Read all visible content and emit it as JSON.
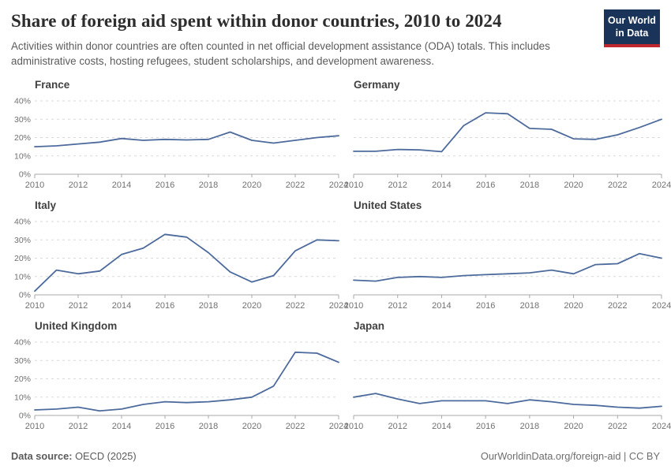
{
  "header": {
    "title": "Share of foreign aid spent within donor countries, 2010 to 2024",
    "subtitle": "Activities within donor countries are often counted in net official development assistance (ODA) totals. This includes administrative costs, hosting refugees, student scholarships, and development awareness.",
    "logo": {
      "line1": "Our World",
      "line2": "in Data"
    }
  },
  "colors": {
    "line": "#4c6a9c",
    "gridline": "#d9d9d9",
    "axis": "#a8a8a8",
    "tick_text": "#717171",
    "logo_bg": "#1a3459",
    "logo_underline": "#c0262d"
  },
  "axis": {
    "x_range": [
      2010,
      2024
    ],
    "x_ticks": [
      2010,
      2012,
      2014,
      2016,
      2018,
      2020,
      2022,
      2024
    ],
    "ylim": [
      0,
      40
    ],
    "y_ticks": [
      0,
      10,
      20,
      30,
      40
    ],
    "y_tick_labels": [
      "0%",
      "10%",
      "20%",
      "30%",
      "40%"
    ],
    "grid": "dashed-horizontal",
    "legend": "none"
  },
  "chart_data": [
    {
      "type": "line",
      "title": "France",
      "y_axis_labels": true,
      "x": [
        2010,
        2011,
        2012,
        2013,
        2014,
        2015,
        2016,
        2017,
        2018,
        2019,
        2020,
        2021,
        2022,
        2023,
        2024
      ],
      "values": [
        15,
        15.5,
        16.5,
        17.5,
        19.5,
        18.5,
        19,
        18.7,
        19,
        23,
        18.5,
        17,
        18.5,
        20,
        21
      ]
    },
    {
      "type": "line",
      "title": "Germany",
      "y_axis_labels": false,
      "x": [
        2010,
        2011,
        2012,
        2013,
        2014,
        2015,
        2016,
        2017,
        2018,
        2019,
        2020,
        2021,
        2022,
        2023,
        2024
      ],
      "values": [
        12.5,
        12.5,
        13.5,
        13.3,
        12.3,
        26.5,
        33.5,
        33,
        25,
        24.5,
        19.3,
        19,
        21.5,
        25.5,
        30
      ]
    },
    {
      "type": "line",
      "title": "Italy",
      "y_axis_labels": true,
      "x": [
        2010,
        2011,
        2012,
        2013,
        2014,
        2015,
        2016,
        2017,
        2018,
        2019,
        2020,
        2021,
        2022,
        2023,
        2024
      ],
      "values": [
        2,
        13.5,
        11.5,
        13,
        22,
        25.5,
        33,
        31.5,
        23,
        12.5,
        7,
        10.5,
        24,
        30,
        29.5
      ]
    },
    {
      "type": "line",
      "title": "United States",
      "y_axis_labels": false,
      "x": [
        2010,
        2011,
        2012,
        2013,
        2014,
        2015,
        2016,
        2017,
        2018,
        2019,
        2020,
        2021,
        2022,
        2023,
        2024
      ],
      "values": [
        8,
        7.5,
        9.5,
        10,
        9.5,
        10.5,
        11,
        11.5,
        12,
        13.5,
        11.5,
        16.5,
        17,
        22.5,
        20
      ]
    },
    {
      "type": "line",
      "title": "United Kingdom",
      "y_axis_labels": true,
      "x": [
        2010,
        2011,
        2012,
        2013,
        2014,
        2015,
        2016,
        2017,
        2018,
        2019,
        2020,
        2021,
        2022,
        2023,
        2024
      ],
      "values": [
        3,
        3.5,
        4.5,
        2.5,
        3.5,
        6,
        7.5,
        7,
        7.5,
        8.5,
        10,
        16,
        34.5,
        34,
        29
      ]
    },
    {
      "type": "line",
      "title": "Japan",
      "y_axis_labels": false,
      "x": [
        2010,
        2011,
        2012,
        2013,
        2014,
        2015,
        2016,
        2017,
        2018,
        2019,
        2020,
        2021,
        2022,
        2023,
        2024
      ],
      "values": [
        10,
        12,
        9,
        6.5,
        8,
        8,
        8,
        6.5,
        8.5,
        7.5,
        6,
        5.5,
        4.5,
        4,
        5
      ]
    }
  ],
  "footer": {
    "source_label": "Data source:",
    "source_value": "OECD (2025)",
    "credit": "OurWorldinData.org/foreign-aid | CC BY"
  }
}
